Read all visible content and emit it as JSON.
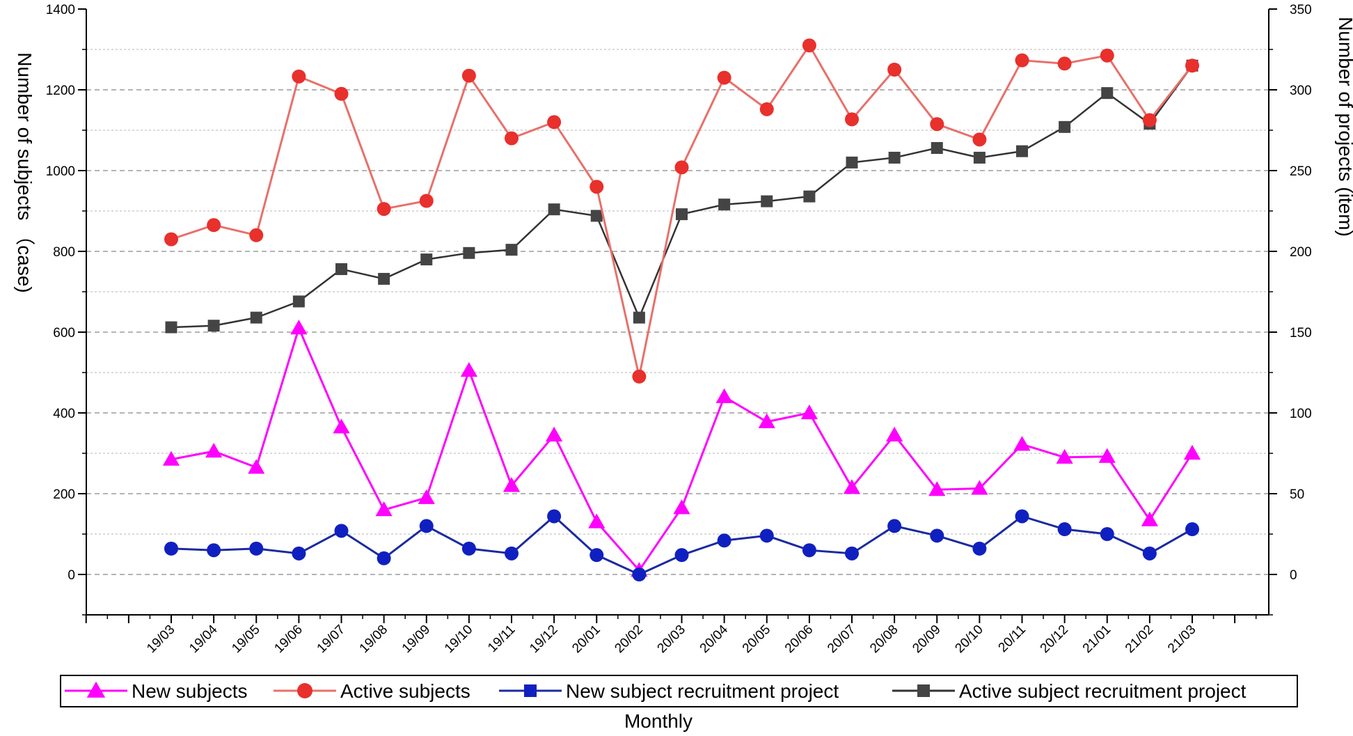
{
  "chart_data": {
    "type": "line",
    "x": [
      "19/03",
      "19/04",
      "19/05",
      "19/06",
      "19/07",
      "19/08",
      "19/09",
      "19/10",
      "19/11",
      "19/12",
      "20/01",
      "20/02",
      "20/03",
      "20/04",
      "20/05",
      "20/06",
      "20/07",
      "20/08",
      "20/09",
      "20/10",
      "20/11",
      "20/12",
      "21/01",
      "21/02",
      "21/03"
    ],
    "xlabel": "Monthly",
    "ylabel_left": "Number of subjects （case)",
    "ylabel_right": "Number of projects (item)",
    "ylim_left": [
      -100,
      1400
    ],
    "ylim_right": [
      -25,
      350
    ],
    "yticks_left": [
      0,
      200,
      400,
      600,
      800,
      1000,
      1200,
      1400
    ],
    "yticks_right": [
      0,
      50,
      100,
      150,
      200,
      250,
      300,
      350
    ],
    "grid": "horizontal dashed",
    "legend_position": "bottom",
    "series": [
      {
        "name": "New subjects",
        "axis": "left",
        "marker": "triangle",
        "color": "#ff00ff",
        "values": [
          285,
          305,
          265,
          610,
          365,
          160,
          190,
          505,
          220,
          345,
          130,
          10,
          165,
          440,
          378,
          400,
          215,
          345,
          210,
          213,
          322,
          290,
          292,
          135,
          300
        ]
      },
      {
        "name": "Active subjects",
        "axis": "left",
        "marker": "circle",
        "color": "#e8302c",
        "line_color": "#e8706a",
        "values": [
          830,
          865,
          840,
          1233,
          1190,
          905,
          925,
          1235,
          1080,
          1120,
          960,
          490,
          1008,
          1230,
          1152,
          1310,
          1127,
          1250,
          1115,
          1077,
          1273,
          1265,
          1285,
          1125,
          1260
        ]
      },
      {
        "name": "New subject recruitment project",
        "axis": "right",
        "marker": "circle",
        "legend_marker": "square",
        "color": "#1020c0",
        "line_color": "#1a2aa0",
        "values": [
          16,
          15,
          16,
          13,
          27,
          10,
          30,
          16,
          13,
          36,
          12,
          0,
          12,
          21,
          24,
          15,
          13,
          30,
          24,
          16,
          36,
          28,
          25,
          13,
          28
        ]
      },
      {
        "name": "Active subject recruitment project",
        "axis": "right",
        "marker": "square",
        "color": "#444444",
        "line_color": "#333333",
        "values": [
          153,
          154,
          159,
          169,
          189,
          183,
          195,
          199,
          201,
          226,
          222,
          159,
          223,
          229,
          231,
          234,
          255,
          258,
          264,
          258,
          262,
          277,
          298,
          279,
          315
        ]
      }
    ]
  }
}
